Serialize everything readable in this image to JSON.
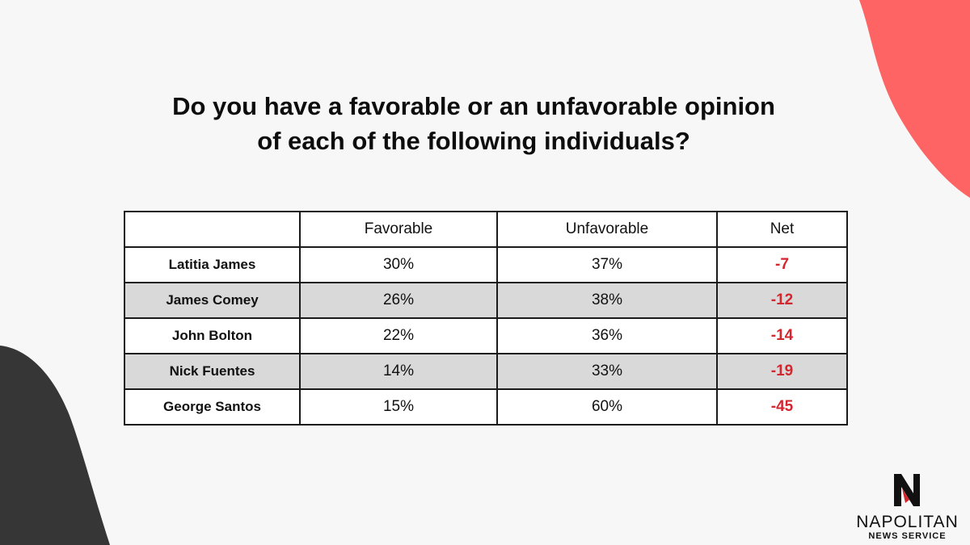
{
  "title": {
    "line1": "Do you have a favorable or an unfavorable opinion",
    "line2": "of each of the following individuals?"
  },
  "table": {
    "headers": [
      "",
      "Favorable",
      "Unfavorable",
      "Net"
    ],
    "rows": [
      {
        "name": "Latitia James",
        "favorable": "30%",
        "unfavorable": "37%",
        "net": "-7"
      },
      {
        "name": "James Comey",
        "favorable": "26%",
        "unfavorable": "38%",
        "net": "-12"
      },
      {
        "name": "John Bolton",
        "favorable": "22%",
        "unfavorable": "36%",
        "net": "-14"
      },
      {
        "name": "Nick Fuentes",
        "favorable": "14%",
        "unfavorable": "33%",
        "net": "-19"
      },
      {
        "name": "George Santos",
        "favorable": "15%",
        "unfavorable": "60%",
        "net": "-45"
      }
    ]
  },
  "chart_data": {
    "type": "table",
    "title": "Do you have a favorable or an unfavorable opinion of each of the following individuals?",
    "columns": [
      "Favorable",
      "Unfavorable",
      "Net"
    ],
    "rows": [
      "Latitia James",
      "James Comey",
      "John Bolton",
      "Nick Fuentes",
      "George Santos"
    ],
    "series": [
      {
        "name": "Favorable",
        "values": [
          30,
          26,
          22,
          14,
          15
        ]
      },
      {
        "name": "Unfavorable",
        "values": [
          37,
          38,
          36,
          33,
          60
        ]
      },
      {
        "name": "Net",
        "values": [
          -7,
          -12,
          -14,
          -19,
          -45
        ]
      }
    ]
  },
  "logo": {
    "letter": "N",
    "name": "NAPOLITAN",
    "subtitle": "NEWS SERVICE"
  },
  "colors": {
    "background": "#f7f7f7",
    "accent_blob": "#fe6464",
    "dark_blob": "#363636",
    "net_negative": "#d4262e",
    "row_shade": "#d9d9d9"
  }
}
